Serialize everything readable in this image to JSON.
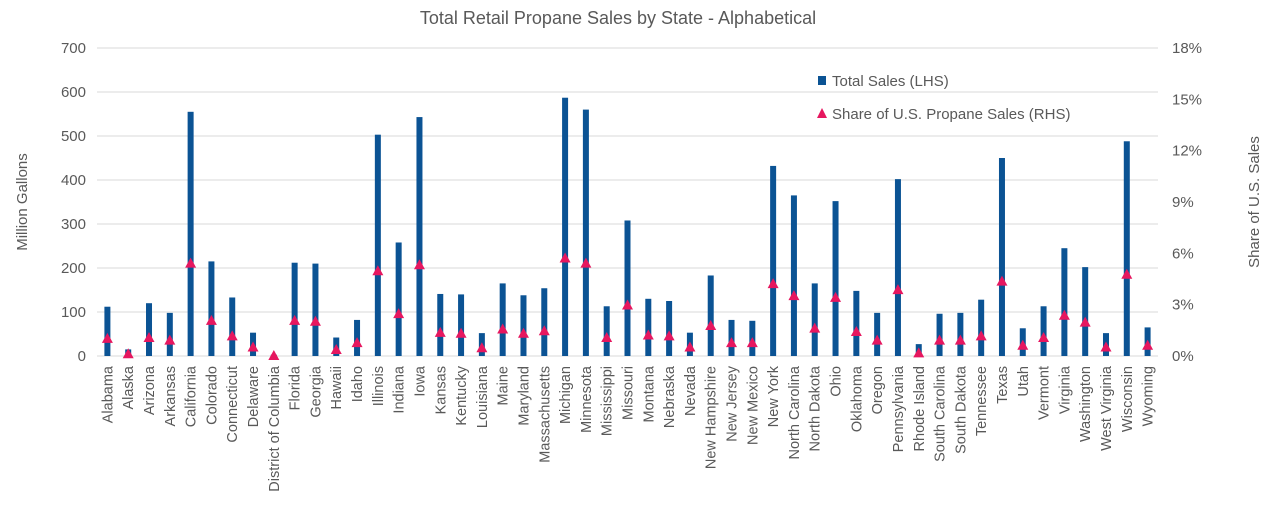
{
  "chart_data": {
    "type": "bar",
    "title": "Total Retail Propane Sales by State - Alphabetical",
    "ylabel": "Million Gallons",
    "y2label": "Share of U.S. Sales",
    "ylim": [
      0,
      700
    ],
    "y2lim": [
      0,
      18
    ],
    "yticks": [
      "0",
      "100",
      "200",
      "300",
      "400",
      "500",
      "600",
      "700"
    ],
    "y2ticks": [
      "0%",
      "3%",
      "6%",
      "9%",
      "12%",
      "15%",
      "18%"
    ],
    "legend_position": "top-right",
    "grid": true,
    "categories": [
      "Alabama",
      "Alaska",
      "Arizona",
      "Arkansas",
      "California",
      "Colorado",
      "Connecticut",
      "Delaware",
      "District of Columbia",
      "Florida",
      "Georgia",
      "Hawaii",
      "Idaho",
      "Illinois",
      "Indiana",
      "Iowa",
      "Kansas",
      "Kentucky",
      "Louisiana",
      "Maine",
      "Maryland",
      "Massachusetts",
      "Michigan",
      "Minnesota",
      "Mississippi",
      "Missouri",
      "Montana",
      "Nebraska",
      "Nevada",
      "New Hampshire",
      "New Jersey",
      "New Mexico",
      "New York",
      "North Carolina",
      "North Dakota",
      "Ohio",
      "Oklahoma",
      "Oregon",
      "Pennsylvania",
      "Rhode Island",
      "South Carolina",
      "South Dakota",
      "Tennessee",
      "Texas",
      "Utah",
      "Vermont",
      "Virginia",
      "Washington",
      "West Virginia",
      "Wisconsin",
      "Wyoming"
    ],
    "series": [
      {
        "name": "Total Sales (LHS)",
        "kind": "bar",
        "axis": "left",
        "color": "#0b5394",
        "values": [
          112,
          15,
          120,
          98,
          555,
          215,
          133,
          53,
          3,
          212,
          210,
          42,
          82,
          503,
          258,
          543,
          141,
          140,
          52,
          165,
          138,
          154,
          587,
          560,
          113,
          308,
          130,
          125,
          53,
          183,
          82,
          80,
          432,
          365,
          165,
          352,
          148,
          98,
          402,
          27,
          96,
          98,
          128,
          450,
          63,
          113,
          245,
          202,
          52,
          488,
          65
        ]
      },
      {
        "name": "Share of U.S. Propane Sales (RHS)",
        "kind": "marker",
        "axis": "right",
        "color": "#e6175f",
        "values": [
          1.0,
          0.1,
          1.05,
          0.9,
          5.4,
          2.05,
          1.15,
          0.5,
          0.0,
          2.05,
          2.0,
          0.35,
          0.75,
          4.95,
          2.45,
          5.3,
          1.35,
          1.3,
          0.45,
          1.55,
          1.3,
          1.45,
          5.7,
          5.4,
          1.05,
          2.95,
          1.2,
          1.15,
          0.5,
          1.75,
          0.75,
          0.75,
          4.2,
          3.5,
          1.6,
          3.4,
          1.4,
          0.9,
          3.85,
          0.15,
          0.9,
          0.9,
          1.15,
          4.35,
          0.6,
          1.05,
          2.35,
          1.95,
          0.5,
          4.75,
          0.6
        ]
      }
    ]
  }
}
